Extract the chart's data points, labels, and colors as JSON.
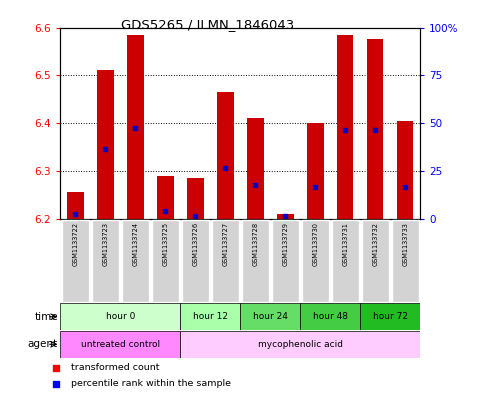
{
  "title": "GDS5265 / ILMN_1846043",
  "samples": [
    "GSM1133722",
    "GSM1133723",
    "GSM1133724",
    "GSM1133725",
    "GSM1133726",
    "GSM1133727",
    "GSM1133728",
    "GSM1133729",
    "GSM1133730",
    "GSM1133731",
    "GSM1133732",
    "GSM1133733"
  ],
  "bar_tops": [
    6.255,
    6.51,
    6.585,
    6.29,
    6.285,
    6.465,
    6.41,
    6.21,
    6.4,
    6.585,
    6.575,
    6.405
  ],
  "bar_base": 6.2,
  "blue_marker_values": [
    6.21,
    6.345,
    6.39,
    6.215,
    6.205,
    6.305,
    6.27,
    6.205,
    6.265,
    6.385,
    6.385,
    6.265
  ],
  "ylim": [
    6.2,
    6.6
  ],
  "right_ylim": [
    0,
    100
  ],
  "right_yticks": [
    0,
    25,
    50,
    75,
    100
  ],
  "right_yticklabels": [
    "0",
    "25",
    "50",
    "75",
    "100%"
  ],
  "left_yticks": [
    6.2,
    6.3,
    6.4,
    6.5,
    6.6
  ],
  "bar_color": "#CC0000",
  "blue_color": "#0000CC",
  "background_color": "#ffffff",
  "time_groups": [
    {
      "label": "hour 0",
      "start": 0,
      "end": 4,
      "color": "#ccffcc"
    },
    {
      "label": "hour 12",
      "start": 4,
      "end": 6,
      "color": "#aaffaa"
    },
    {
      "label": "hour 24",
      "start": 6,
      "end": 8,
      "color": "#66dd66"
    },
    {
      "label": "hour 48",
      "start": 8,
      "end": 10,
      "color": "#44cc44"
    },
    {
      "label": "hour 72",
      "start": 10,
      "end": 12,
      "color": "#22bb22"
    }
  ],
  "agent_groups": [
    {
      "label": "untreated control",
      "start": 0,
      "end": 4,
      "color": "#ff88ff"
    },
    {
      "label": "mycophenolic acid",
      "start": 4,
      "end": 12,
      "color": "#ffccff"
    }
  ],
  "legend_red": "transformed count",
  "legend_blue": "percentile rank within the sample"
}
